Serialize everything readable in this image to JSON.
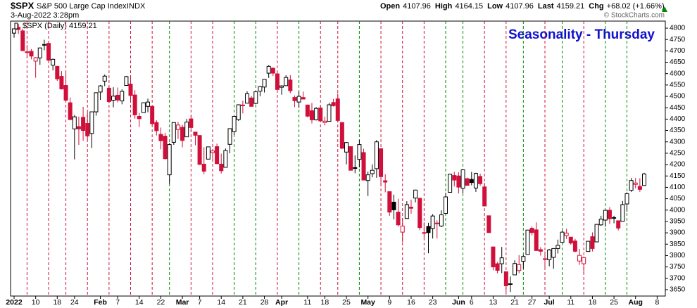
{
  "chart_data": {
    "type": "candlestick",
    "symbol": "$SPX",
    "description": "S&P 500 Large Cap Index",
    "exchange": "INDX",
    "timestamp": "3-Aug-2022 3:28pm",
    "quote": [
      {
        "label": "Open",
        "value": "4107.96"
      },
      {
        "label": "High",
        "value": "4164.15"
      },
      {
        "label": "Low",
        "value": "4107.96"
      },
      {
        "label": "Last",
        "value": "4159.21"
      },
      {
        "label": "Chg",
        "value": "+68.02 (+1.66%)"
      }
    ],
    "legend": "$SPX (Daily) 4159.21",
    "title": "Seasonality - Thursday",
    "watermark": "© StockCharts.com",
    "title_color": "#1010d0",
    "up_color": "#000000",
    "down_color": "#d0103a",
    "thursday_up_color": "#008a00",
    "thursday_down_color": "#d0103a",
    "ylim": [
      3622,
      4831
    ],
    "yticks": [
      3650,
      3700,
      3750,
      3800,
      3850,
      3900,
      3950,
      4000,
      4050,
      4100,
      4150,
      4200,
      4250,
      4300,
      4350,
      4400,
      4450,
      4500,
      4550,
      4600,
      4650,
      4700,
      4750,
      4800
    ],
    "xlim": [
      "2022-01-03",
      "2022-08-10"
    ],
    "xticks": [
      {
        "value": "2022-01-03",
        "label": "2022"
      },
      {
        "value": "2022-01-10",
        "label": "10"
      },
      {
        "value": "2022-01-18",
        "label": "18"
      },
      {
        "value": "2022-01-24",
        "label": "24"
      },
      {
        "value": "2022-02-01",
        "label": "Feb"
      },
      {
        "value": "2022-02-07",
        "label": "7"
      },
      {
        "value": "2022-02-14",
        "label": "14"
      },
      {
        "value": "2022-02-22",
        "label": "22"
      },
      {
        "value": "2022-03-01",
        "label": "Mar"
      },
      {
        "value": "2022-03-07",
        "label": "7"
      },
      {
        "value": "2022-03-14",
        "label": "14"
      },
      {
        "value": "2022-03-21",
        "label": "21"
      },
      {
        "value": "2022-03-28",
        "label": "28"
      },
      {
        "value": "2022-04-01",
        "label": "Apr"
      },
      {
        "value": "2022-04-11",
        "label": "11"
      },
      {
        "value": "2022-04-18",
        "label": "18"
      },
      {
        "value": "2022-04-25",
        "label": "25"
      },
      {
        "value": "2022-05-02",
        "label": "May"
      },
      {
        "value": "2022-05-09",
        "label": "9"
      },
      {
        "value": "2022-05-16",
        "label": "16"
      },
      {
        "value": "2022-05-23",
        "label": "23"
      },
      {
        "value": "2022-06-01",
        "label": "Jun"
      },
      {
        "value": "2022-06-06",
        "label": "6"
      },
      {
        "value": "2022-06-13",
        "label": "13"
      },
      {
        "value": "2022-06-21",
        "label": "21"
      },
      {
        "value": "2022-06-27",
        "label": "27"
      },
      {
        "value": "2022-07-01",
        "label": "Jul"
      },
      {
        "value": "2022-07-11",
        "label": "11"
      },
      {
        "value": "2022-07-18",
        "label": "18"
      },
      {
        "value": "2022-07-25",
        "label": "25"
      },
      {
        "value": "2022-08-01",
        "label": "Aug"
      },
      {
        "value": "2022-08-08",
        "label": "8"
      }
    ],
    "x": [
      "2022-01-03",
      "2022-01-04",
      "2022-01-05",
      "2022-01-06",
      "2022-01-07",
      "2022-01-10",
      "2022-01-11",
      "2022-01-12",
      "2022-01-13",
      "2022-01-14",
      "2022-01-18",
      "2022-01-19",
      "2022-01-20",
      "2022-01-21",
      "2022-01-24",
      "2022-01-25",
      "2022-01-26",
      "2022-01-27",
      "2022-01-28",
      "2022-01-31",
      "2022-02-01",
      "2022-02-02",
      "2022-02-03",
      "2022-02-04",
      "2022-02-07",
      "2022-02-08",
      "2022-02-09",
      "2022-02-10",
      "2022-02-11",
      "2022-02-14",
      "2022-02-15",
      "2022-02-16",
      "2022-02-17",
      "2022-02-18",
      "2022-02-22",
      "2022-02-23",
      "2022-02-24",
      "2022-02-25",
      "2022-02-28",
      "2022-03-01",
      "2022-03-02",
      "2022-03-03",
      "2022-03-04",
      "2022-03-07",
      "2022-03-08",
      "2022-03-09",
      "2022-03-10",
      "2022-03-11",
      "2022-03-14",
      "2022-03-15",
      "2022-03-16",
      "2022-03-17",
      "2022-03-18",
      "2022-03-21",
      "2022-03-22",
      "2022-03-23",
      "2022-03-24",
      "2022-03-25",
      "2022-03-28",
      "2022-03-29",
      "2022-03-30",
      "2022-03-31",
      "2022-04-01",
      "2022-04-04",
      "2022-04-05",
      "2022-04-06",
      "2022-04-07",
      "2022-04-08",
      "2022-04-11",
      "2022-04-12",
      "2022-04-13",
      "2022-04-14",
      "2022-04-18",
      "2022-04-19",
      "2022-04-20",
      "2022-04-21",
      "2022-04-22",
      "2022-04-25",
      "2022-04-26",
      "2022-04-27",
      "2022-04-28",
      "2022-04-29",
      "2022-05-02",
      "2022-05-03",
      "2022-05-04",
      "2022-05-05",
      "2022-05-06",
      "2022-05-09",
      "2022-05-10",
      "2022-05-11",
      "2022-05-12",
      "2022-05-13",
      "2022-05-16",
      "2022-05-17",
      "2022-05-18",
      "2022-05-19",
      "2022-05-20",
      "2022-05-23",
      "2022-05-24",
      "2022-05-25",
      "2022-05-26",
      "2022-05-27",
      "2022-05-31",
      "2022-06-01",
      "2022-06-02",
      "2022-06-03",
      "2022-06-06",
      "2022-06-07",
      "2022-06-08",
      "2022-06-09",
      "2022-06-10",
      "2022-06-13",
      "2022-06-14",
      "2022-06-15",
      "2022-06-16",
      "2022-06-17",
      "2022-06-21",
      "2022-06-22",
      "2022-06-23",
      "2022-06-24",
      "2022-06-27",
      "2022-06-28",
      "2022-06-29",
      "2022-06-30",
      "2022-07-01",
      "2022-07-05",
      "2022-07-06",
      "2022-07-07",
      "2022-07-08",
      "2022-07-11",
      "2022-07-12",
      "2022-07-13",
      "2022-07-14",
      "2022-07-15",
      "2022-07-18",
      "2022-07-19",
      "2022-07-20",
      "2022-07-21",
      "2022-07-22",
      "2022-07-25",
      "2022-07-26",
      "2022-07-27",
      "2022-07-28",
      "2022-07-29",
      "2022-08-01",
      "2022-08-02",
      "2022-08-03"
    ],
    "ohlc": [
      [
        4778,
        4797,
        4758,
        4797
      ],
      [
        4804,
        4819,
        4775,
        4794
      ],
      [
        4788,
        4798,
        4700,
        4701
      ],
      [
        4693,
        4726,
        4667,
        4696
      ],
      [
        4698,
        4708,
        4663,
        4677
      ],
      [
        4655,
        4673,
        4582,
        4670
      ],
      [
        4669,
        4714,
        4639,
        4713
      ],
      [
        4728,
        4749,
        4703,
        4726
      ],
      [
        4733,
        4744,
        4651,
        4659
      ],
      [
        4637,
        4666,
        4614,
        4663
      ],
      [
        4632,
        4632,
        4568,
        4577
      ],
      [
        4588,
        4611,
        4530,
        4533
      ],
      [
        4548,
        4603,
        4477,
        4483
      ],
      [
        4472,
        4495,
        4396,
        4398
      ],
      [
        4357,
        4418,
        4223,
        4410
      ],
      [
        4367,
        4411,
        4287,
        4357
      ],
      [
        4408,
        4454,
        4305,
        4350
      ],
      [
        4381,
        4429,
        4310,
        4326
      ],
      [
        4337,
        4433,
        4273,
        4432
      ],
      [
        4432,
        4516,
        4415,
        4516
      ],
      [
        4519,
        4550,
        4484,
        4546
      ],
      [
        4567,
        4596,
        4545,
        4589
      ],
      [
        4536,
        4547,
        4470,
        4477
      ],
      [
        4483,
        4540,
        4452,
        4501
      ],
      [
        4505,
        4539,
        4474,
        4484
      ],
      [
        4480,
        4531,
        4465,
        4522
      ],
      [
        4548,
        4590,
        4548,
        4587
      ],
      [
        4554,
        4589,
        4477,
        4504
      ],
      [
        4506,
        4527,
        4402,
        4419
      ],
      [
        4412,
        4427,
        4365,
        4402
      ],
      [
        4429,
        4473,
        4429,
        4472
      ],
      [
        4456,
        4490,
        4430,
        4475
      ],
      [
        4456,
        4456,
        4373,
        4380
      ],
      [
        4385,
        4395,
        4328,
        4349
      ],
      [
        4333,
        4363,
        4267,
        4305
      ],
      [
        4325,
        4340,
        4222,
        4226
      ],
      [
        4155,
        4295,
        4115,
        4288
      ],
      [
        4298,
        4385,
        4287,
        4385
      ],
      [
        4354,
        4388,
        4313,
        4374
      ],
      [
        4364,
        4375,
        4276,
        4306
      ],
      [
        4322,
        4401,
        4322,
        4387
      ],
      [
        4401,
        4417,
        4345,
        4363
      ],
      [
        4343,
        4343,
        4285,
        4329
      ],
      [
        4328,
        4328,
        4199,
        4201
      ],
      [
        4202,
        4276,
        4158,
        4171
      ],
      [
        4224,
        4278,
        4224,
        4278
      ],
      [
        4253,
        4268,
        4220,
        4260
      ],
      [
        4279,
        4292,
        4203,
        4204
      ],
      [
        4202,
        4248,
        4161,
        4173
      ],
      [
        4188,
        4271,
        4188,
        4262
      ],
      [
        4289,
        4358,
        4250,
        4358
      ],
      [
        4345,
        4412,
        4330,
        4412
      ],
      [
        4398,
        4465,
        4392,
        4463
      ],
      [
        4462,
        4481,
        4425,
        4461
      ],
      [
        4470,
        4522,
        4470,
        4512
      ],
      [
        4493,
        4501,
        4455,
        4456
      ],
      [
        4469,
        4521,
        4465,
        4520
      ],
      [
        4523,
        4546,
        4501,
        4543
      ],
      [
        4541,
        4575,
        4517,
        4575
      ],
      [
        4602,
        4637,
        4581,
        4632
      ],
      [
        4624,
        4627,
        4589,
        4602
      ],
      [
        4599,
        4603,
        4530,
        4530
      ],
      [
        4540,
        4549,
        4507,
        4546
      ],
      [
        4547,
        4593,
        4547,
        4583
      ],
      [
        4572,
        4593,
        4514,
        4525
      ],
      [
        4495,
        4504,
        4453,
        4481
      ],
      [
        4475,
        4521,
        4450,
        4500
      ],
      [
        4495,
        4521,
        4488,
        4488
      ],
      [
        4462,
        4464,
        4408,
        4413
      ],
      [
        4437,
        4471,
        4381,
        4397
      ],
      [
        4397,
        4453,
        4394,
        4447
      ],
      [
        4449,
        4460,
        4392,
        4392
      ],
      [
        4385,
        4411,
        4372,
        4391
      ],
      [
        4390,
        4471,
        4390,
        4463
      ],
      [
        4473,
        4489,
        4455,
        4459
      ],
      [
        4489,
        4513,
        4385,
        4394
      ],
      [
        4385,
        4385,
        4268,
        4272
      ],
      [
        4255,
        4299,
        4201,
        4297
      ],
      [
        4279,
        4279,
        4175,
        4175
      ],
      [
        4187,
        4240,
        4162,
        4183
      ],
      [
        4223,
        4309,
        4188,
        4288
      ],
      [
        4253,
        4270,
        4132,
        4132
      ],
      [
        4130,
        4169,
        4062,
        4155
      ],
      [
        4160,
        4201,
        4144,
        4175
      ],
      [
        4182,
        4308,
        4142,
        4300
      ],
      [
        4270,
        4270,
        4107,
        4147
      ],
      [
        4129,
        4158,
        4078,
        4123
      ],
      [
        4081,
        4082,
        3975,
        3991
      ],
      [
        4035,
        4068,
        3959,
        4001
      ],
      [
        3991,
        4050,
        3928,
        3935
      ],
      [
        3903,
        3964,
        3859,
        3930
      ],
      [
        3963,
        4039,
        3963,
        4024
      ],
      [
        4013,
        4046,
        3984,
        4008
      ],
      [
        4053,
        4090,
        4034,
        4088
      ],
      [
        4052,
        4052,
        3912,
        3923
      ],
      [
        3899,
        3946,
        3877,
        3901
      ],
      [
        3928,
        3944,
        3810,
        3901
      ],
      [
        3919,
        3982,
        3875,
        3974
      ],
      [
        3943,
        3955,
        3875,
        3941
      ],
      [
        3930,
        3999,
        3925,
        3979
      ],
      [
        3985,
        4076,
        3985,
        4058
      ],
      [
        4078,
        4158,
        4078,
        4158
      ],
      [
        4152,
        4168,
        4104,
        4132
      ],
      [
        4150,
        4166,
        4073,
        4101
      ],
      [
        4096,
        4177,
        4074,
        4177
      ],
      [
        4138,
        4143,
        4107,
        4109
      ],
      [
        4135,
        4168,
        4109,
        4121
      ],
      [
        4097,
        4164,
        4080,
        4161
      ],
      [
        4148,
        4160,
        4107,
        4116
      ],
      [
        4102,
        4120,
        4017,
        4018
      ],
      [
        3975,
        3975,
        3900,
        3901
      ],
      [
        3838,
        3838,
        3735,
        3750
      ],
      [
        3764,
        3772,
        3722,
        3735
      ],
      [
        3764,
        3838,
        3723,
        3790
      ],
      [
        3729,
        3729,
        3640,
        3667
      ],
      [
        3676,
        3708,
        3640,
        3675
      ],
      [
        3715,
        3779,
        3715,
        3765
      ],
      [
        3734,
        3802,
        3722,
        3760
      ],
      [
        3775,
        3802,
        3743,
        3796
      ],
      [
        3805,
        3913,
        3805,
        3912
      ],
      [
        3920,
        3928,
        3889,
        3901
      ],
      [
        3913,
        3946,
        3820,
        3822
      ],
      [
        3826,
        3837,
        3800,
        3819
      ],
      [
        3786,
        3818,
        3738,
        3785
      ],
      [
        3782,
        3829,
        3753,
        3825
      ],
      [
        3792,
        3832,
        3742,
        3831
      ],
      [
        3831,
        3870,
        3809,
        3845
      ],
      [
        3858,
        3910,
        3858,
        3903
      ],
      [
        3888,
        3918,
        3873,
        3899
      ],
      [
        3881,
        3881,
        3848,
        3855
      ],
      [
        3864,
        3874,
        3814,
        3819
      ],
      [
        3776,
        3829,
        3759,
        3801
      ],
      [
        3764,
        3796,
        3722,
        3791
      ],
      [
        3818,
        3863,
        3818,
        3863
      ],
      [
        3883,
        3902,
        3818,
        3831
      ],
      [
        3860,
        3939,
        3860,
        3937
      ],
      [
        3935,
        3975,
        3930,
        3960
      ],
      [
        3956,
        3999,
        3927,
        3999
      ],
      [
        3999,
        4013,
        3939,
        3962
      ],
      [
        3965,
        3975,
        3942,
        3967
      ],
      [
        3953,
        3953,
        3911,
        3921
      ],
      [
        3951,
        4040,
        3951,
        4024
      ],
      [
        4027,
        4078,
        3993,
        4072
      ],
      [
        4087,
        4141,
        4080,
        4130
      ],
      [
        4113,
        4141,
        4096,
        4119
      ],
      [
        4104,
        4140,
        4080,
        4091
      ],
      [
        4108,
        4164,
        4108,
        4159
      ]
    ]
  }
}
